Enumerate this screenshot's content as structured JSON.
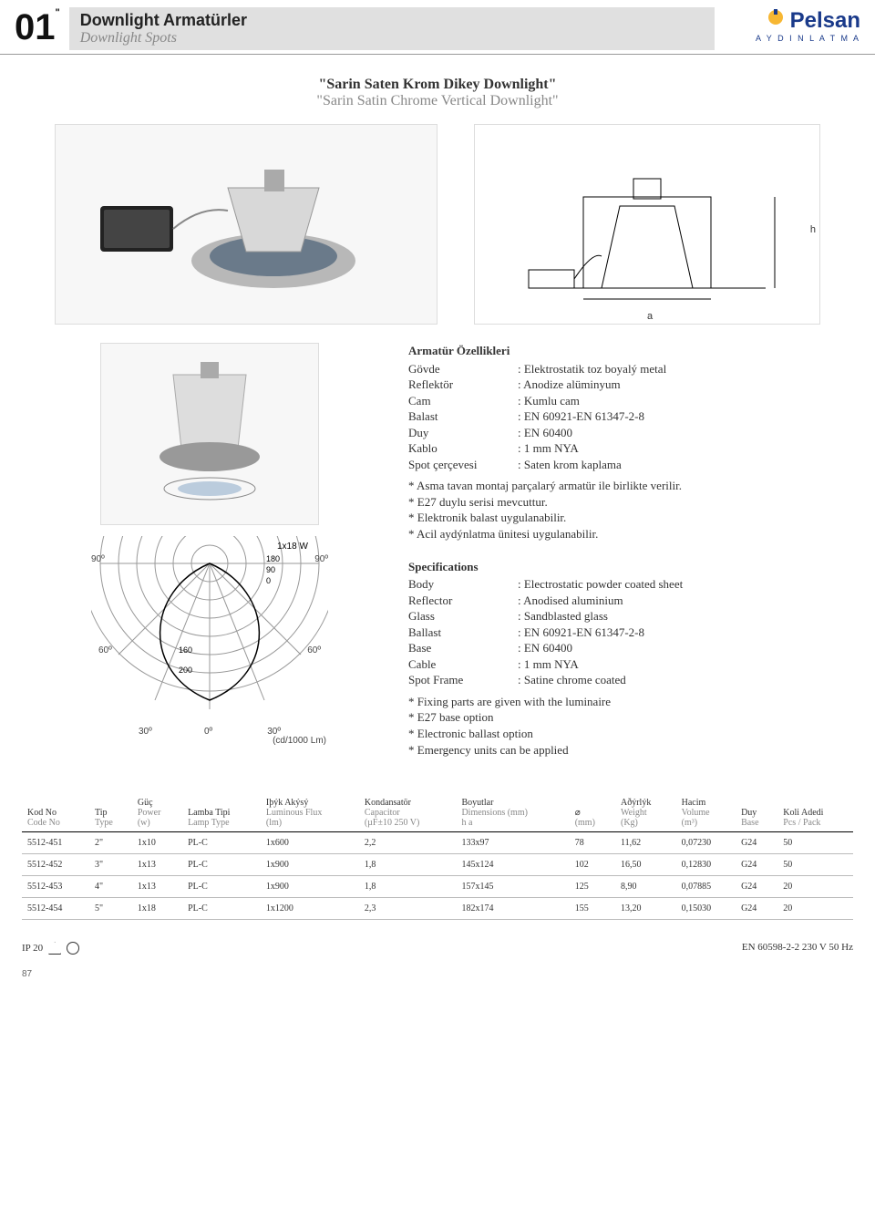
{
  "header": {
    "chapter": "01",
    "title_tr": "Downlight Armatürler",
    "title_en": "Downlight Spots",
    "logo_name": "Pelsan",
    "logo_sub": "A Y D I N L A T M A",
    "logo_color": "#1a3a8a"
  },
  "subtitle": {
    "tr": "\"Sarin Saten Krom Dikey Downlight\"",
    "en": "\"Sarin Satin Chrome Vertical Downlight\""
  },
  "tech_dims": {
    "h": "h",
    "a": "a"
  },
  "specs_tr": {
    "heading": "Armatür Özellikleri",
    "rows": [
      {
        "k": "Gövde",
        "v": ": Elektrostatik toz boyalý metal"
      },
      {
        "k": "Reflektör",
        "v": ": Anodize alüminyum"
      },
      {
        "k": "Cam",
        "v": ": Kumlu cam"
      },
      {
        "k": "Balast",
        "v": ": EN 60921-EN 61347-2-8"
      },
      {
        "k": "Duy",
        "v": ": EN 60400"
      },
      {
        "k": "Kablo",
        "v": ": 1 mm NYA"
      },
      {
        "k": "Spot çerçevesi",
        "v": ": Saten krom kaplama"
      }
    ],
    "notes": [
      "* Asma tavan montaj parçalarý armatür ile birlikte verilir.",
      "* E27 duylu serisi mevcuttur.",
      "* Elektronik balast uygulanabilir.",
      "* Acil aydýnlatma ünitesi uygulanabilir."
    ]
  },
  "specs_en": {
    "heading": "Specifications",
    "rows": [
      {
        "k": "Body",
        "v": ": Electrostatic powder coated sheet"
      },
      {
        "k": "Reflector",
        "v": ": Anodised aluminium"
      },
      {
        "k": "Glass",
        "v": ": Sandblasted glass"
      },
      {
        "k": "Ballast",
        "v": ": EN 60921-EN 61347-2-8"
      },
      {
        "k": "Base",
        "v": ": EN 60400"
      },
      {
        "k": "Cable",
        "v": ": 1 mm NYA"
      },
      {
        "k": "Spot Frame",
        "v": ": Satine chrome coated"
      }
    ],
    "notes": [
      "* Fixing parts are given with the luminaire",
      "* E27 base option",
      "* Electronic ballast option",
      "* Emergency units can be applied"
    ]
  },
  "polar": {
    "title": "1x18 W",
    "radii_labels": [
      "180",
      "90",
      "0",
      "160",
      "200"
    ],
    "angles": [
      "90º",
      "90º",
      "60º",
      "60º",
      "30º",
      "0º",
      "30º"
    ],
    "unit": "(cd/1000 Lm)",
    "line_color": "#000",
    "grid_color": "#999"
  },
  "table": {
    "headers": [
      {
        "tr": "Kod No",
        "en": "Code No"
      },
      {
        "tr": "Tip",
        "en": "Type"
      },
      {
        "tr": "Güç",
        "en": "Power",
        "unit": "(w)"
      },
      {
        "tr": "Lamba Tipi",
        "en": "Lamp Type"
      },
      {
        "tr": "Iþýk Akýsý",
        "en": "Luminous Flux",
        "unit": "(lm)"
      },
      {
        "tr": "Kondansatör",
        "en": "Capacitor",
        "unit": "(µF±10 250 V)"
      },
      {
        "tr": "Boyutlar",
        "en": "Dimensions (mm)",
        "sub": "h        a"
      },
      {
        "tr": "⌀",
        "en": "",
        "unit": "(mm)"
      },
      {
        "tr": "Aðýrlýk",
        "en": "Weight",
        "unit": "(Kg)"
      },
      {
        "tr": "Hacim",
        "en": "Volume",
        "unit": "(m³)"
      },
      {
        "tr": "Duy",
        "en": "Base"
      },
      {
        "tr": "Koli Adedi",
        "en": "Pcs / Pack"
      }
    ],
    "rows": [
      [
        "5512-451",
        "2\"",
        "1x10",
        "PL-C",
        "1x600",
        "2,2",
        "133x97",
        "78",
        "11,62",
        "0,07230",
        "G24",
        "50"
      ],
      [
        "5512-452",
        "3\"",
        "1x13",
        "PL-C",
        "1x900",
        "1,8",
        "145x124",
        "102",
        "16,50",
        "0,12830",
        "G24",
        "50"
      ],
      [
        "5512-453",
        "4\"",
        "1x13",
        "PL-C",
        "1x900",
        "1,8",
        "157x145",
        "125",
        "8,90",
        "0,07885",
        "G24",
        "20"
      ],
      [
        "5512-454",
        "5\"",
        "1x18",
        "PL-C",
        "1x1200",
        "2,3",
        "182x174",
        "155",
        "13,20",
        "0,15030",
        "G24",
        "20"
      ]
    ]
  },
  "footer": {
    "ip": "IP 20",
    "standard": "EN 60598-2-2  230 V 50 Hz",
    "page": "87"
  }
}
